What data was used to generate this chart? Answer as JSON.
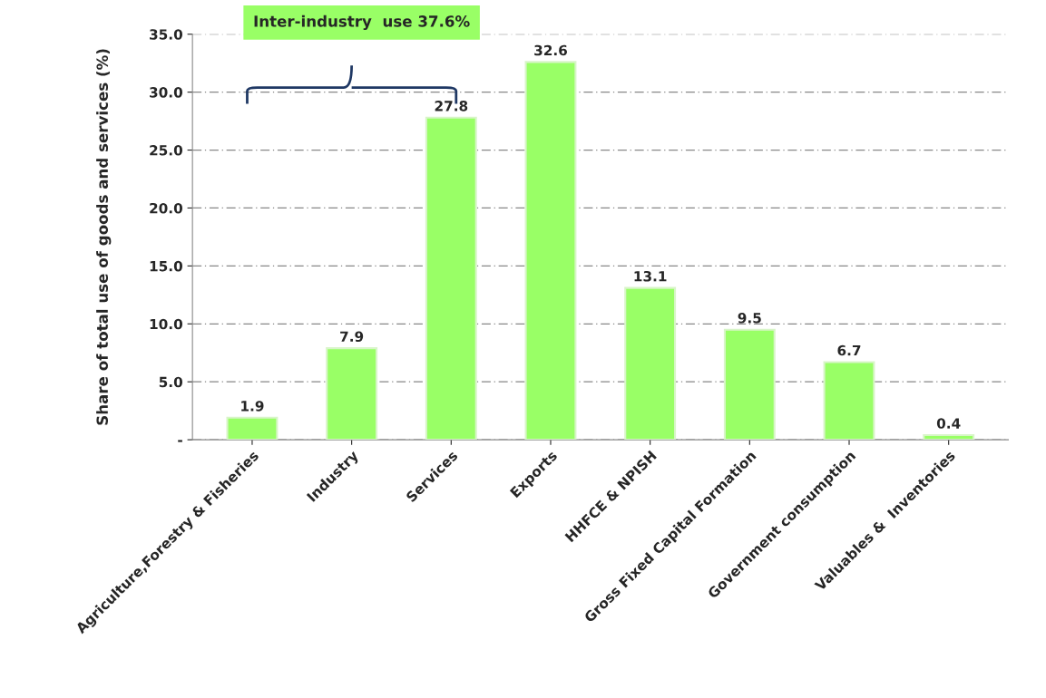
{
  "chart_data": {
    "type": "bar",
    "ylabel": "Share of total use of goods and services (%)",
    "categories": [
      "Agriculture,Forestry & Fisheries",
      "Industry",
      "Services",
      "Exports",
      "HHFCE & NPISH",
      "Gross Fixed Capital Formation",
      "Government consumption",
      "Valuables &  Inventories"
    ],
    "values": [
      1.9,
      7.9,
      27.8,
      32.6,
      13.1,
      9.5,
      6.7,
      0.4
    ],
    "color": "#99ff66",
    "data_labels": true,
    "ylim": [
      0,
      35
    ],
    "yticks": [
      {
        "value": 0,
        "label": "-"
      },
      {
        "value": 5,
        "label": "5.0"
      },
      {
        "value": 10,
        "label": "10.0"
      },
      {
        "value": 15,
        "label": "15.0"
      },
      {
        "value": 20,
        "label": "20.0"
      },
      {
        "value": 25,
        "label": "25.0"
      },
      {
        "value": 30,
        "label": "30.0"
      },
      {
        "value": 35,
        "label": "35.0"
      }
    ],
    "grid": "y",
    "annotations": [
      "Inter-industry  use 37.6%"
    ]
  }
}
